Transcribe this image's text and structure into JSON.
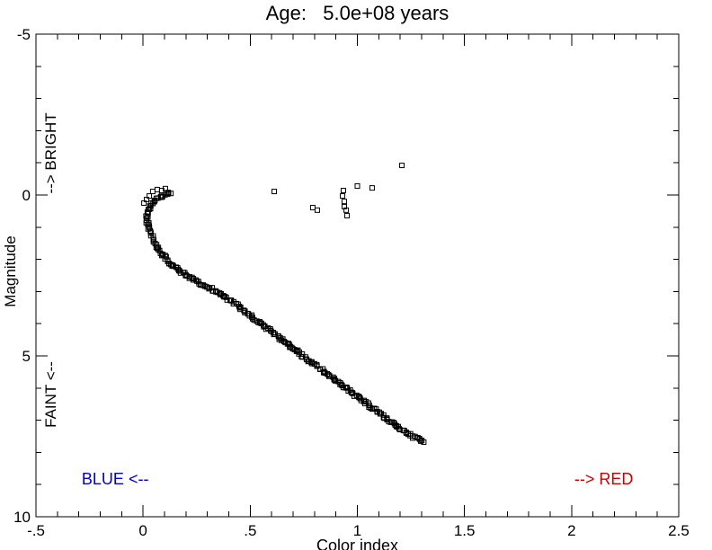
{
  "figure": {
    "background": "#ffffff"
  },
  "chart_data": {
    "type": "scatter",
    "title": "Age:   5.0e+08 years",
    "xlabel": "Color index",
    "ylabel": "Magnitude",
    "xlim": [
      -0.5,
      2.5
    ],
    "ylim": [
      -5,
      10
    ],
    "y_axis_direction": "inverted-bright-up",
    "grid": false,
    "legend": "none",
    "marker": "open-square",
    "marker_color": "#000000",
    "x_ticks": [
      -0.5,
      0,
      0.5,
      1,
      1.5,
      2,
      2.5
    ],
    "x_tick_labels": [
      "-.5",
      "0",
      ".5",
      "1",
      "1.5",
      "2",
      "2.5"
    ],
    "x_minor_step": 0.1,
    "y_ticks": [
      -5,
      0,
      5,
      10
    ],
    "y_tick_labels": [
      "-5",
      "0",
      "5",
      "10"
    ],
    "y_minor_step": 1,
    "series": [
      {
        "name": "main-sequence",
        "style": "dense-band",
        "jitter": 0.007,
        "anchors": [
          [
            0.12,
            -0.05
          ],
          [
            0.09,
            0.05
          ],
          [
            0.05,
            0.2
          ],
          [
            0.03,
            0.4
          ],
          [
            0.02,
            0.65
          ],
          [
            0.02,
            0.95
          ],
          [
            0.04,
            1.25
          ],
          [
            0.06,
            1.55
          ],
          [
            0.09,
            1.85
          ],
          [
            0.13,
            2.15
          ],
          [
            0.19,
            2.45
          ],
          [
            0.26,
            2.75
          ],
          [
            0.31,
            2.9
          ],
          [
            0.37,
            3.1
          ],
          [
            0.42,
            3.35
          ],
          [
            0.47,
            3.6
          ],
          [
            0.54,
            3.95
          ],
          [
            0.61,
            4.3
          ],
          [
            0.69,
            4.72
          ],
          [
            0.77,
            5.12
          ],
          [
            0.85,
            5.52
          ],
          [
            0.93,
            5.92
          ],
          [
            1.01,
            6.32
          ],
          [
            1.09,
            6.72
          ],
          [
            1.17,
            7.12
          ],
          [
            1.25,
            7.48
          ],
          [
            1.31,
            7.68
          ]
        ]
      },
      {
        "name": "turnoff-stars",
        "style": "points",
        "points": [
          [
            0.029,
            0.03
          ],
          [
            0.045,
            -0.11
          ],
          [
            0.066,
            -0.17
          ],
          [
            0.087,
            -0.14
          ],
          [
            0.104,
            -0.2
          ],
          [
            0.117,
            -0.08
          ],
          [
            0.016,
            0.14
          ],
          [
            0.004,
            0.25
          ],
          [
            0.13,
            -0.05
          ]
        ]
      },
      {
        "name": "giant-stars",
        "style": "points",
        "points": [
          [
            0.612,
            -0.11
          ],
          [
            0.792,
            0.39
          ],
          [
            0.813,
            0.47
          ],
          [
            0.931,
            0.03
          ],
          [
            0.935,
            -0.14
          ],
          [
            0.939,
            0.2
          ],
          [
            0.939,
            0.36
          ],
          [
            0.948,
            0.47
          ],
          [
            0.952,
            0.64
          ],
          [
            1.0,
            -0.28
          ],
          [
            1.069,
            -0.22
          ],
          [
            1.208,
            -0.92
          ]
        ]
      }
    ],
    "annotations": [
      {
        "name": "bright-annotation",
        "text": "--> BRIGHT",
        "color": "#000000",
        "x": -0.408,
        "y": -1.3,
        "rotate": -90,
        "size": 17
      },
      {
        "name": "faint-annotation",
        "text": "FAINT <--",
        "color": "#000000",
        "x": -0.408,
        "y": 6.2,
        "rotate": -90,
        "size": 17
      },
      {
        "name": "blue-annotation",
        "text": "BLUE <--",
        "color": "#0000cc",
        "x": -0.13,
        "y": 9.0,
        "rotate": 0,
        "size": 18
      },
      {
        "name": "red-annotation",
        "text": "--> RED",
        "color": "#cc0000",
        "x": 2.15,
        "y": 9.0,
        "rotate": 0,
        "size": 18
      }
    ]
  }
}
